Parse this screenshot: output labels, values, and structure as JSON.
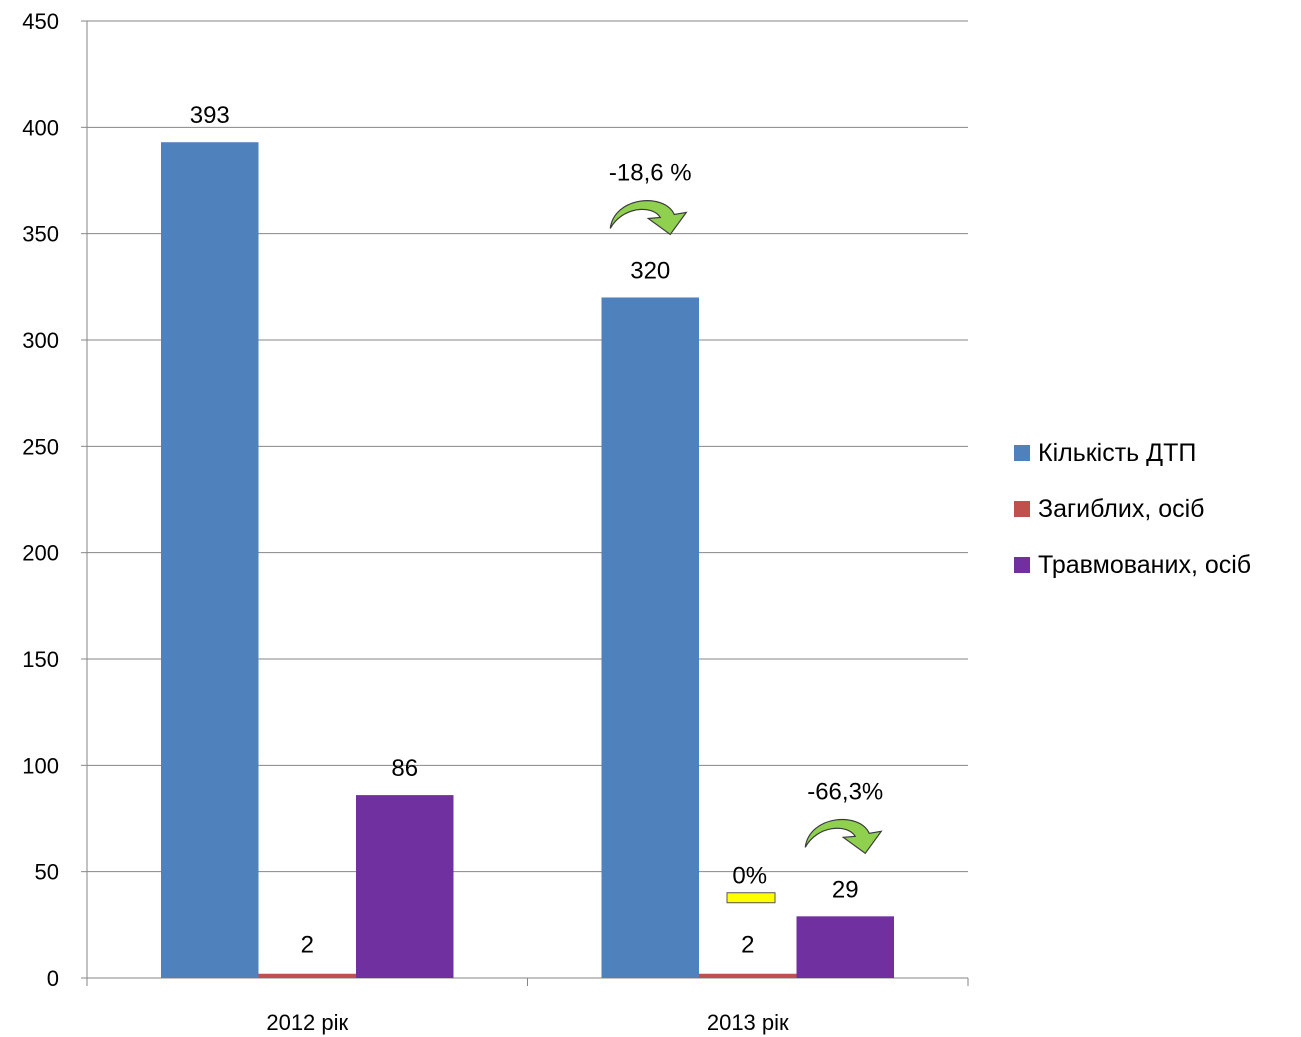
{
  "chart_data": {
    "type": "bar",
    "categories": [
      "2012 рік",
      "2013 рік"
    ],
    "series": [
      {
        "name": "Кількість ДТП",
        "color": "#4F81BD",
        "values": [
          393,
          320
        ]
      },
      {
        "name": "Загиблих, осіб",
        "color": "#C0504D",
        "values": [
          2,
          2
        ]
      },
      {
        "name": "Травмованих, осіб",
        "color": "#7030A0",
        "values": [
          86,
          29
        ]
      }
    ],
    "ylim": [
      0,
      450
    ],
    "yticks": [
      0,
      50,
      100,
      150,
      200,
      250,
      300,
      350,
      400,
      450
    ],
    "grid": true,
    "legend_position": "right",
    "annotations": [
      {
        "text": "-18,6 %",
        "series": "Кількість ДТП",
        "category": "2013 рік",
        "marker": "green-curved-arrow-icon",
        "marker_color": "#8FD14F"
      },
      {
        "text": "0%",
        "series": "Загиблих, осіб",
        "category": "2013 рік",
        "marker": "yellow-dash-icon",
        "marker_color": "#FFFF00"
      },
      {
        "text": "-66,3%",
        "series": "Травмованих, осіб",
        "category": "2013 рік",
        "marker": "green-curved-arrow-icon",
        "marker_color": "#8FD14F"
      }
    ]
  }
}
